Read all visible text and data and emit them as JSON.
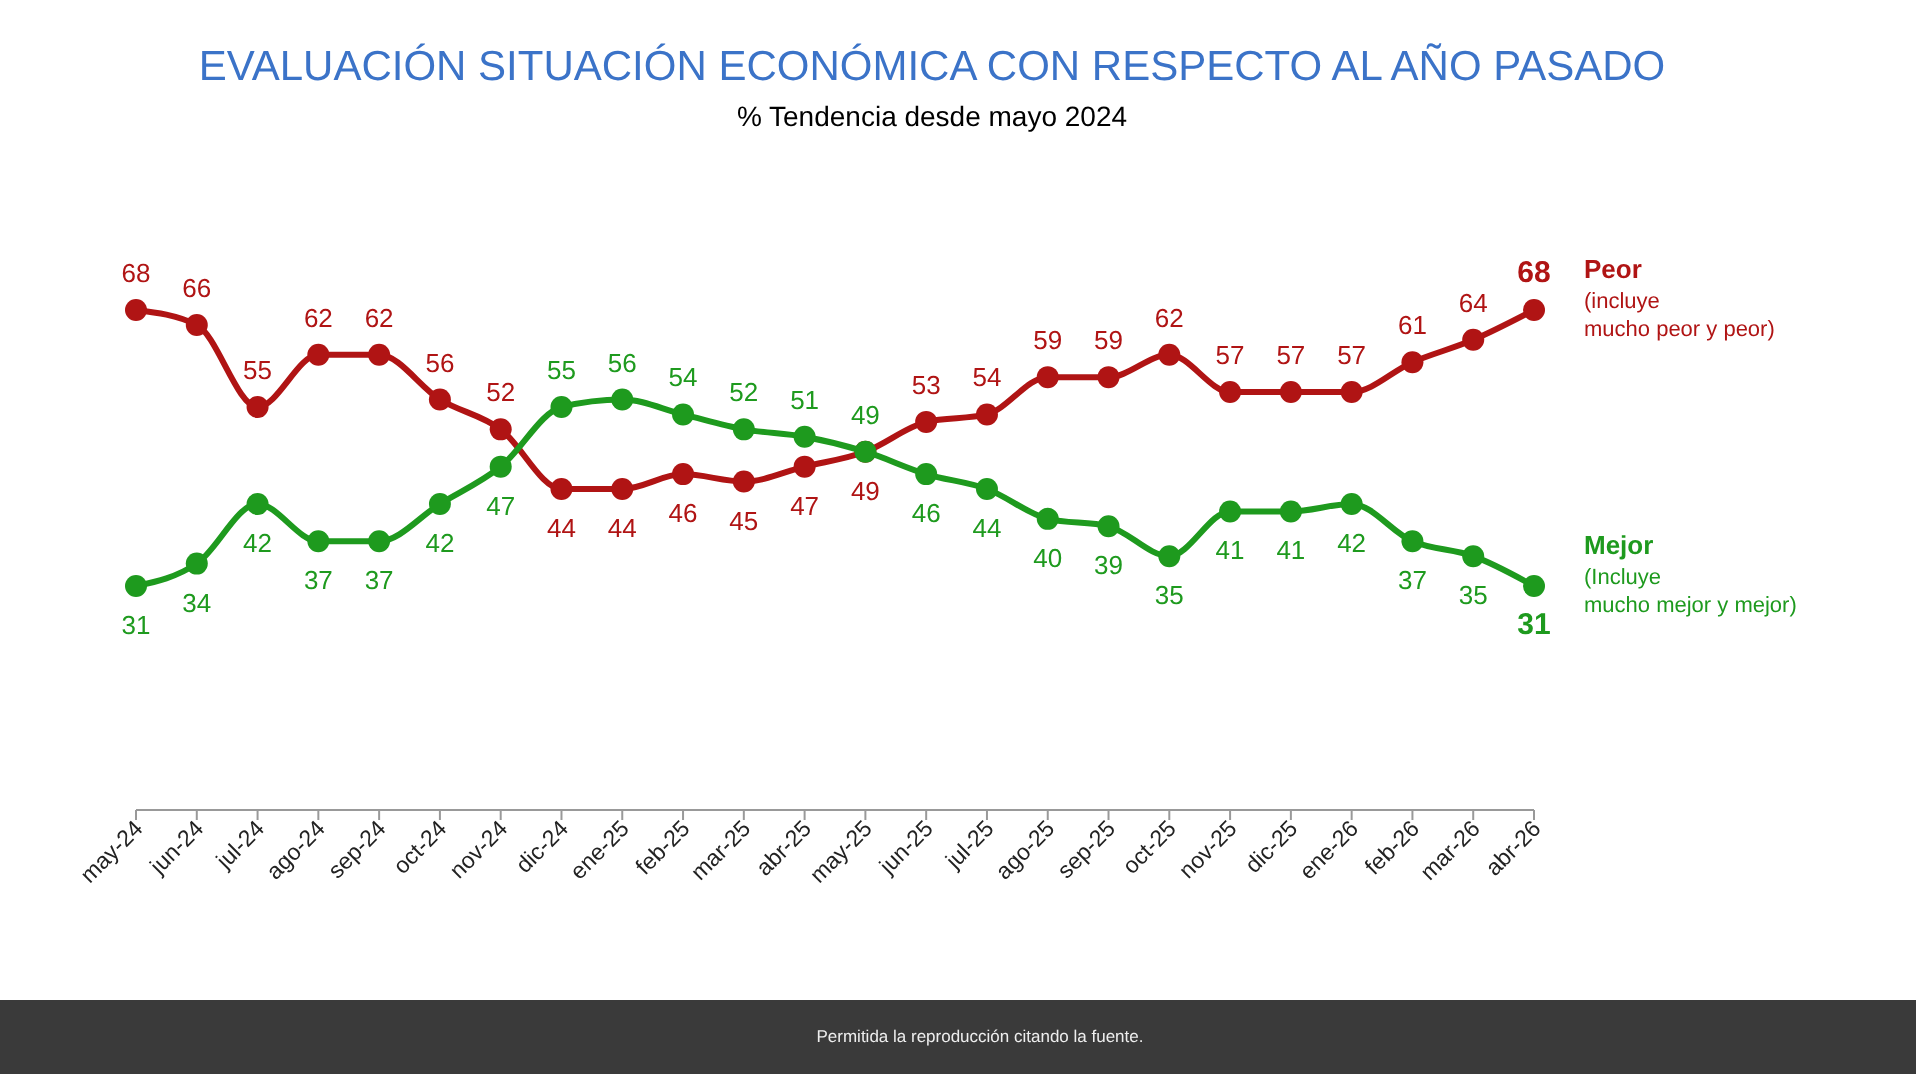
{
  "chart_data": {
    "type": "line",
    "title": "EVALUACIÓN SITUACIÓN ECONÓMICA CON RESPECTO AL AÑO PASADO",
    "subtitle": "% Tendencia desde mayo 2024",
    "categories": [
      "may-24",
      "jun-24",
      "jul-24",
      "ago-24",
      "sep-24",
      "oct-24",
      "nov-24",
      "dic-24",
      "ene-25",
      "feb-25",
      "mar-25",
      "abr-25",
      "may-25",
      "jun-25",
      "jul-25",
      "ago-25",
      "sep-25",
      "oct-25",
      "nov-25",
      "dic-25",
      "ene-26",
      "feb-26",
      "mar-26",
      "abr-26"
    ],
    "series": [
      {
        "name": "Peor",
        "color": "#b01414",
        "values": [
          68,
          66,
          55,
          62,
          62,
          56,
          52,
          44,
          44,
          46,
          45,
          47,
          49,
          53,
          54,
          59,
          59,
          62,
          57,
          57,
          57,
          61,
          64,
          68
        ]
      },
      {
        "name": "Mejor",
        "color": "#1e9a1e",
        "values": [
          31,
          34,
          42,
          37,
          37,
          42,
          47,
          55,
          56,
          54,
          52,
          51,
          49,
          46,
          44,
          40,
          39,
          35,
          41,
          41,
          42,
          37,
          35,
          31
        ]
      }
    ],
    "annotations": [
      "(incluye mucho peor y peor)",
      "(Incluye mucho mejor y mejor)",
      "Permitida la reproducción citando la fuente."
    ],
    "data_labels": true,
    "marker": "circle",
    "legend": "right"
  }
}
